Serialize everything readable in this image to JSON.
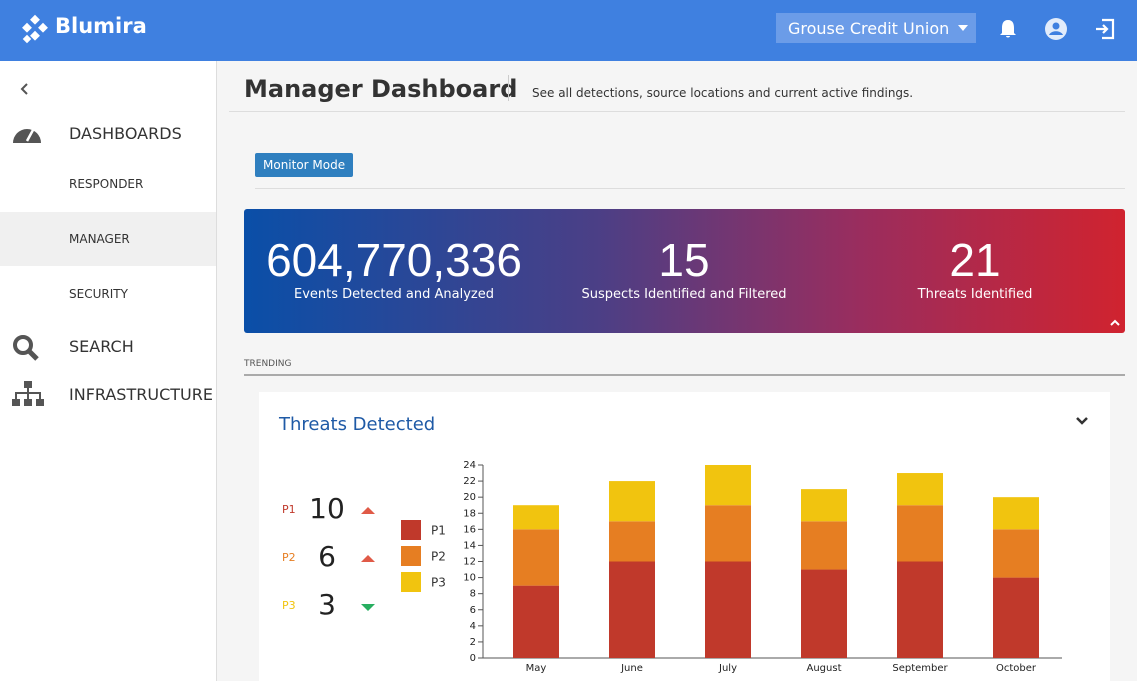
{
  "header": {
    "brand": "Blumira",
    "org": "Grouse Credit Union"
  },
  "nav": [
    "DASHBOARDS",
    "RESPONDER",
    "MANAGER",
    "SECURITY",
    "SEARCH",
    "INFRASTRUCTURE"
  ],
  "page": {
    "title": "Manager Dashboard",
    "subtitle": "See all detections, source locations and current active findings.",
    "button": "Monitor Mode"
  },
  "stats": [
    {
      "value": "604,770,336",
      "label": "Events Detected and Analyzed"
    },
    {
      "value": 15,
      "label": "Suspects Identified and Filtered"
    },
    {
      "value": 21,
      "label": "Threats Identified"
    }
  ],
  "section": "TRENDING",
  "summary": [
    {
      "name": "P1",
      "value": 10,
      "trend": "up",
      "color": "#c0392b"
    },
    {
      "name": "P2",
      "value": 6,
      "trend": "up",
      "color": "#e67e22"
    },
    {
      "name": "P3",
      "value": 3,
      "trend": "down",
      "color": "#f1c40f"
    }
  ],
  "chart_data": {
    "type": "stacked-bar",
    "title": "Threats Detected",
    "categories": [
      "May",
      "June",
      "July",
      "August",
      "September",
      "October"
    ],
    "series": [
      {
        "name": "P1",
        "color": "#c0392b",
        "values": [
          9,
          12,
          12,
          11,
          12,
          10
        ]
      },
      {
        "name": "P2",
        "color": "#e67e22",
        "values": [
          7,
          5,
          7,
          6,
          7,
          6
        ]
      },
      {
        "name": "P3",
        "color": "#f1c40f",
        "values": [
          3,
          5,
          5,
          4,
          4,
          4
        ]
      }
    ],
    "ylim": [
      0,
      24
    ],
    "yticks": [
      0,
      2,
      4,
      6,
      8,
      10,
      12,
      14,
      16,
      18,
      20,
      22,
      24
    ]
  }
}
